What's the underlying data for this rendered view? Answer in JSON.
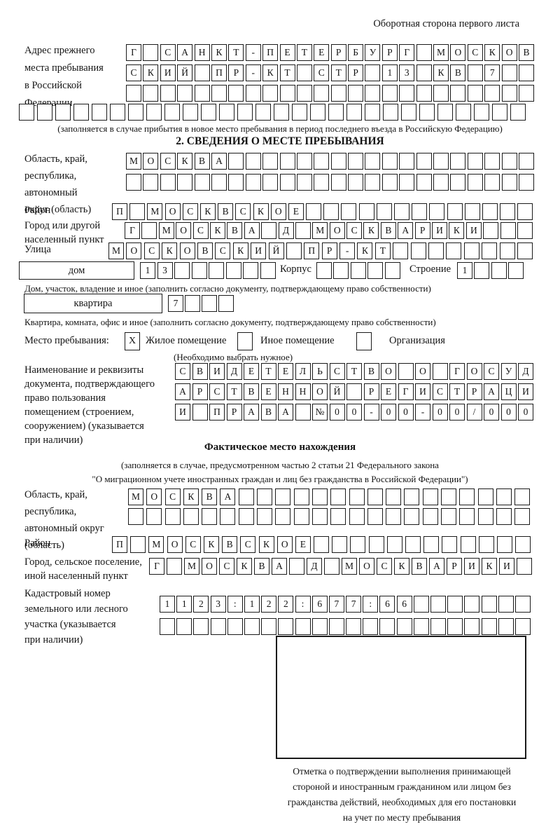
{
  "header": {
    "note": "Оборотная сторона первого листа"
  },
  "prev_address": {
    "label_lines": [
      "Адрес прежнего",
      "места пребывания",
      "в Российской",
      "Федерации"
    ],
    "row1": {
      "count": 24,
      "text": "Г САНКТ-ПЕТЕРБУРГ МОСКОВ"
    },
    "row2": {
      "count": 24,
      "text": "СКИЙ ПР-КТ СТР 13 КВ 7"
    },
    "row3": {
      "count": 24,
      "text": ""
    },
    "row4": {
      "count": 28,
      "text": ""
    },
    "note": "(заполняется в случае прибытия в новое место пребывания в период последнего въезда в Российскую Федерацию)"
  },
  "section2": {
    "title": "2. СВЕДЕНИЯ О МЕСТЕ ПРЕБЫВАНИЯ",
    "region_label_lines": [
      "Область, край,",
      "республика,",
      "автономный",
      "округ (область)"
    ],
    "region_row1": {
      "count": 24,
      "text": "МОСКВА"
    },
    "region_row2": {
      "count": 24,
      "text": ""
    },
    "district_label": "Район",
    "district_row": {
      "count": 24,
      "text": "П МОСКВСКОЕ"
    },
    "city_label_lines": [
      "Город или другой",
      "населенный пункт"
    ],
    "city_row": {
      "count": 24,
      "text": "Г МОСКВА Д МОСКВАРИКИ"
    },
    "street_label": "Улица",
    "street_row": {
      "count": 24,
      "text": "МОСКОВСКИЙ ПР-КТ"
    },
    "house": {
      "field_label": "дом",
      "cells": {
        "count": 8,
        "text": "13"
      },
      "korpus_label": "Корпус",
      "korpus_cells": {
        "count": 5,
        "text": ""
      },
      "stroenie_label": "Строение",
      "stroenie_cells": {
        "count": 4,
        "text": "1"
      }
    },
    "house_note": "Дом, участок, владение и иное (заполнить согласно документу, подтверждающему право собственности)",
    "apartment": {
      "field_label": "квартира",
      "cells": {
        "count": 4,
        "text": "7"
      }
    },
    "apartment_note": "Квартира, комната, офис и иное (заполнить согласно документу, подтверждающему право собственности)",
    "stay_place": {
      "label": "Место пребывания:",
      "options": [
        {
          "mark": "X",
          "label": "Жилое помещение"
        },
        {
          "mark": "",
          "label": "Иное помещение"
        },
        {
          "mark": "",
          "label": "Организация"
        }
      ],
      "note": "(Необходимо выбрать нужное)"
    },
    "doc_label_lines": [
      "Наименование и реквизиты",
      "документа, подтверждающего",
      "право пользования",
      "помещением (строением,",
      "сооружением) (указывается",
      "при наличии)"
    ],
    "doc_row1": {
      "count": 21,
      "text": "СВИДЕТЕЛЬСТВО О ГОСУД"
    },
    "doc_row2": {
      "count": 21,
      "text": "АРСТВЕННОЙ РЕГИСТРАЦИ"
    },
    "doc_row3": {
      "count": 21,
      "text": "И ПРАВА №00-00-00/000"
    }
  },
  "actual_location": {
    "title": "Фактическое место нахождения",
    "note_lines": [
      "(заполняется в случае, предусмотренном частью 2 статьи 21 Федерального закона",
      "\"О миграционном учете иностранных граждан и лиц без гражданства в Российской Федерации\")"
    ],
    "region_label_lines": [
      "Область, край,",
      "республика,",
      "автономный округ",
      "(область)"
    ],
    "region_row1": {
      "count": 22,
      "text": "МОСКВА"
    },
    "region_row2": {
      "count": 22,
      "text": ""
    },
    "district_label": "Район",
    "district_row": {
      "count": 23,
      "text": "П МОСКВСКОЕ"
    },
    "city_label_lines": [
      "Город, сельское поселение,",
      "иной населенный пункт"
    ],
    "city_row": {
      "count": 22,
      "text": "Г МОСКВА Д МОСКВАРИКИ"
    },
    "cadastre_label_lines": [
      "Кадастровый номер",
      "земельного или лесного",
      "участка (указывается",
      "при наличии)"
    ],
    "cadastre_row1": {
      "count": 22,
      "text": "1123:122:677:66"
    },
    "cadastre_row2": {
      "count": 22,
      "text": ""
    },
    "stamp_caption_lines": [
      "Отметка о подтверждении выполнения принимающей",
      "стороной и иностранным гражданином или лицом без",
      "гражданства действий, необходимых для его постановки",
      "на учет по месту пребывания"
    ]
  }
}
